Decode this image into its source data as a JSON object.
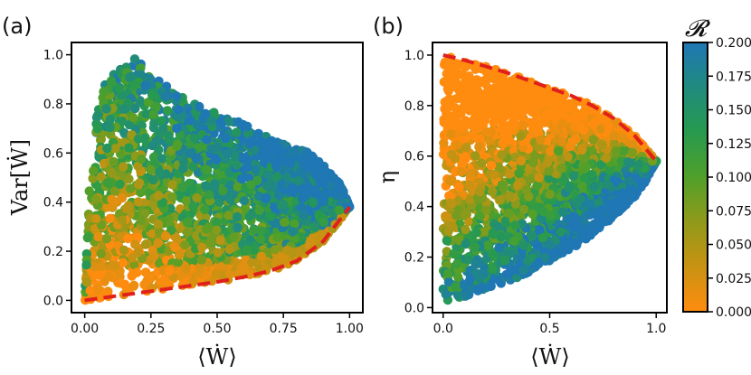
{
  "chart_data": [
    {
      "type": "scatter",
      "panel_label": "(a)",
      "title": "",
      "xlabel": "⟨Ẇ⟩",
      "ylabel": "Var[Ẇ]",
      "xlim": [
        -0.05,
        1.05
      ],
      "ylim": [
        -0.05,
        1.05
      ],
      "xticks": [
        0.0,
        0.25,
        0.5,
        0.75,
        1.0
      ],
      "xticklabels": [
        "0.00",
        "0.25",
        "0.50",
        "0.75",
        "1.00"
      ],
      "yticks": [
        0.0,
        0.2,
        0.4,
        0.6,
        0.8,
        1.0
      ],
      "yticklabels": [
        "0.0",
        "0.2",
        "0.4",
        "0.6",
        "0.8",
        "1.0"
      ],
      "color_variable": "𝓡",
      "bound_curve": {
        "style": "dashed",
        "color": "#e0201b",
        "x": [
          0.0,
          0.1,
          0.2,
          0.3,
          0.4,
          0.5,
          0.6,
          0.7,
          0.8,
          0.9,
          1.0
        ],
        "y": [
          0.0,
          0.015,
          0.03,
          0.045,
          0.06,
          0.075,
          0.095,
          0.12,
          0.16,
          0.24,
          0.38
        ]
      },
      "region": {
        "upper_x": [
          0.0,
          0.02,
          0.05,
          0.08,
          0.12,
          0.16,
          0.2,
          0.25,
          0.3,
          0.4,
          0.5,
          0.6,
          0.7,
          0.8,
          0.85,
          0.9,
          0.95,
          0.98,
          1.0
        ],
        "upper_y": [
          0.0,
          0.55,
          0.8,
          0.9,
          0.96,
          0.97,
          1.0,
          0.93,
          0.88,
          0.82,
          0.76,
          0.72,
          0.66,
          0.62,
          0.6,
          0.55,
          0.5,
          0.44,
          0.38
        ],
        "description": "dense cloud of points; low R (orange) near the lower bound, high R (blue) toward upper right"
      }
    },
    {
      "type": "scatter",
      "panel_label": "(b)",
      "title": "",
      "xlabel": "⟨Ẇ⟩",
      "ylabel": "η",
      "xlim": [
        -0.05,
        1.05
      ],
      "ylim": [
        -0.02,
        1.05
      ],
      "xticks": [
        0.0,
        0.5,
        1.0
      ],
      "xticklabels": [
        "0.0",
        "0.5",
        "1.0"
      ],
      "yticks": [
        0.0,
        0.2,
        0.4,
        0.6,
        0.8,
        1.0
      ],
      "yticklabels": [
        "0.0",
        "0.2",
        "0.4",
        "0.6",
        "0.8",
        "1.0"
      ],
      "color_variable": "𝓡",
      "bound_curve": {
        "style": "dashed",
        "color": "#e0201b",
        "x": [
          0.0,
          0.1,
          0.2,
          0.3,
          0.4,
          0.5,
          0.6,
          0.7,
          0.8,
          0.9,
          1.0
        ],
        "y": [
          1.0,
          0.98,
          0.955,
          0.93,
          0.9,
          0.87,
          0.84,
          0.8,
          0.75,
          0.68,
          0.58
        ]
      },
      "region": {
        "lower_x": [
          0.0,
          0.02,
          0.1,
          0.2,
          0.3,
          0.4,
          0.5,
          0.6,
          0.7,
          0.8,
          0.9,
          0.95,
          1.0
        ],
        "lower_y": [
          0.0,
          0.02,
          0.04,
          0.07,
          0.1,
          0.14,
          0.18,
          0.23,
          0.29,
          0.36,
          0.44,
          0.5,
          0.58
        ],
        "description": "orange (low R) fills the upper-left, blue (high R) forms a wedge toward (1.0, 0.58)"
      }
    }
  ],
  "colorbar": {
    "label": "𝓡",
    "min": 0.0,
    "max": 0.2,
    "ticks": [
      0.0,
      0.025,
      0.05,
      0.075,
      0.1,
      0.125,
      0.15,
      0.175,
      0.2
    ],
    "ticklabels": [
      "0.000",
      "0.025",
      "0.050",
      "0.075",
      "0.100",
      "0.125",
      "0.150",
      "0.175",
      "0.200"
    ],
    "colors": [
      "#ff8c0f",
      "#c89212",
      "#8e9a1a",
      "#4fa02a",
      "#279a4f",
      "#208a80",
      "#1f77b4"
    ]
  }
}
